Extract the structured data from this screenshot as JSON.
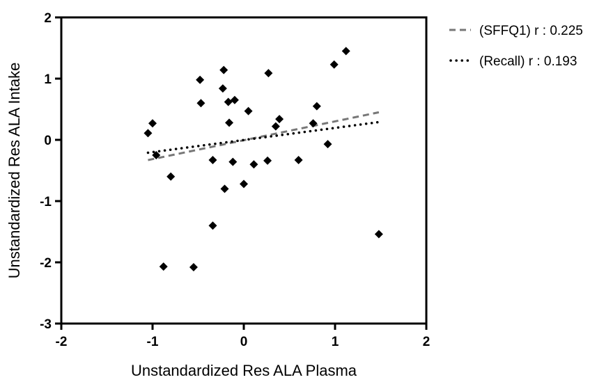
{
  "chart_data": {
    "type": "scatter",
    "xlabel": "Unstandardized Res ALA Plasma",
    "ylabel": "Unstandardized Res ALA Intake",
    "xlim": [
      -2,
      2
    ],
    "ylim": [
      -3,
      2
    ],
    "xticks": [
      -2,
      -1,
      0,
      1,
      2
    ],
    "yticks": [
      -3,
      -2,
      -1,
      0,
      1,
      2
    ],
    "grid": false,
    "legend_position": "top-right, outside plot",
    "points": [
      {
        "x": -1.05,
        "y": 0.11
      },
      {
        "x": -1.0,
        "y": 0.27
      },
      {
        "x": -0.96,
        "y": -0.25
      },
      {
        "x": -0.88,
        "y": -2.07
      },
      {
        "x": -0.8,
        "y": -0.6
      },
      {
        "x": -0.55,
        "y": -2.08
      },
      {
        "x": -0.48,
        "y": 0.98
      },
      {
        "x": -0.47,
        "y": 0.6
      },
      {
        "x": -0.34,
        "y": -0.33
      },
      {
        "x": -0.34,
        "y": -1.4
      },
      {
        "x": -0.23,
        "y": 0.84
      },
      {
        "x": -0.22,
        "y": 1.14
      },
      {
        "x": -0.21,
        "y": -0.8
      },
      {
        "x": -0.17,
        "y": 0.62
      },
      {
        "x": -0.16,
        "y": 0.28
      },
      {
        "x": -0.12,
        "y": -0.36
      },
      {
        "x": -0.1,
        "y": 0.65
      },
      {
        "x": 0.0,
        "y": -0.72
      },
      {
        "x": 0.05,
        "y": 0.47
      },
      {
        "x": 0.11,
        "y": -0.4
      },
      {
        "x": 0.26,
        "y": -0.34
      },
      {
        "x": 0.27,
        "y": 1.09
      },
      {
        "x": 0.35,
        "y": 0.22
      },
      {
        "x": 0.39,
        "y": 0.34
      },
      {
        "x": 0.6,
        "y": -0.33
      },
      {
        "x": 0.76,
        "y": 0.27
      },
      {
        "x": 0.8,
        "y": 0.55
      },
      {
        "x": 0.92,
        "y": -0.07
      },
      {
        "x": 0.99,
        "y": 1.23
      },
      {
        "x": 1.12,
        "y": 1.45
      },
      {
        "x": 1.48,
        "y": -1.54
      }
    ],
    "series": [
      {
        "name": "(SFFQ1) r : 0.225",
        "style": "dashed",
        "color": "#777777",
        "line": [
          [
            -1.05,
            -0.33
          ],
          [
            1.48,
            0.45
          ]
        ]
      },
      {
        "name": "(Recall) r  : 0.193",
        "style": "dotted",
        "color": "#000000",
        "line": [
          [
            -1.05,
            -0.21
          ],
          [
            1.48,
            0.29
          ]
        ]
      }
    ],
    "marker_color": "#000000"
  }
}
